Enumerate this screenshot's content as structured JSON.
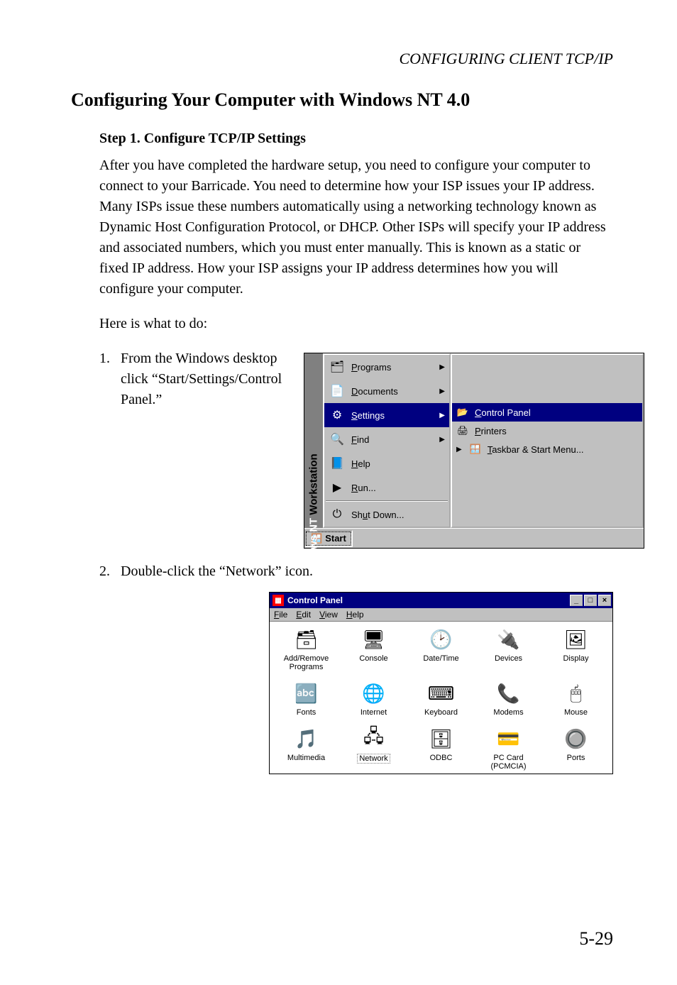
{
  "running_head": "CONFIGURING CLIENT TCP/IP",
  "section_title": "Configuring Your Computer with Windows NT 4.0",
  "step_title": "Step 1. Configure TCP/IP Settings",
  "intro_para": "After you have completed the hardware setup, you need to configure your computer to connect to your Barricade. You need to determine how your ISP issues your IP address. Many ISPs issue these numbers automatically using a networking technology known as Dynamic Host Configuration Protocol, or DHCP. Other ISPs will specify your IP address and associated numbers, which you must enter manually. This is known as a static or fixed IP address. How your ISP assigns your IP address determines how you will configure your computer.",
  "lead_in": "Here is what to do:",
  "list": {
    "item1": {
      "num": "1.",
      "text": "From the Windows desktop click “Start/Settings/Control Panel.”"
    },
    "item2": {
      "num": "2.",
      "text": "Double-click the “Network” icon."
    }
  },
  "start_menu": {
    "banner_bold": "Windows NT",
    "banner_rest": " Workstation",
    "items": [
      {
        "label": "Programs",
        "ak": "P",
        "arrow": true,
        "icon": "programs-icon",
        "glyph": "🗂"
      },
      {
        "label": "Documents",
        "ak": "D",
        "arrow": true,
        "icon": "documents-icon",
        "glyph": "📄"
      },
      {
        "label": "Settings",
        "ak": "S",
        "arrow": true,
        "icon": "settings-icon",
        "glyph": "⚙",
        "selected": true
      },
      {
        "label": "Find",
        "ak": "F",
        "arrow": true,
        "icon": "find-icon",
        "glyph": "🔍"
      },
      {
        "label": "Help",
        "ak": "H",
        "arrow": false,
        "icon": "help-icon",
        "glyph": "📘"
      },
      {
        "label": "Run...",
        "ak": "R",
        "arrow": false,
        "icon": "run-icon",
        "glyph": "▶"
      },
      {
        "sep": true
      },
      {
        "label": "Shut Down...",
        "ak": "u",
        "arrow": false,
        "icon": "shutdown-icon",
        "glyph": "⏻"
      }
    ],
    "submenu": [
      {
        "label": "Control Panel",
        "ak": "C",
        "icon": "control-panel-icon",
        "glyph": "📂",
        "selected": true
      },
      {
        "label": "Printers",
        "ak": "P",
        "icon": "printers-icon",
        "glyph": "🖨"
      },
      {
        "label": "Taskbar & Start Menu...",
        "ak": "T",
        "icon": "taskbar-icon",
        "glyph": "🪟",
        "arrow_left": true
      }
    ],
    "start_button": "Start"
  },
  "control_panel": {
    "title": "Control Panel",
    "menus": [
      {
        "label": "File",
        "ak": "F"
      },
      {
        "label": "Edit",
        "ak": "E"
      },
      {
        "label": "View",
        "ak": "V"
      },
      {
        "label": "Help",
        "ak": "H"
      }
    ],
    "window_controls": {
      "min": "_",
      "max": "□",
      "close": "×"
    },
    "items": [
      {
        "label": "Add/Remove Programs",
        "icon": "add-remove-programs-icon",
        "glyph": "🗃"
      },
      {
        "label": "Console",
        "icon": "console-icon",
        "glyph": "🖥"
      },
      {
        "label": "Date/Time",
        "icon": "date-time-icon",
        "glyph": "🕑"
      },
      {
        "label": "Devices",
        "icon": "devices-icon",
        "glyph": "🔌"
      },
      {
        "label": "Display",
        "icon": "display-icon",
        "glyph": "🖼"
      },
      {
        "label": "Fonts",
        "icon": "fonts-icon",
        "glyph": "🔤"
      },
      {
        "label": "Internet",
        "icon": "internet-icon",
        "glyph": "🌐"
      },
      {
        "label": "Keyboard",
        "icon": "keyboard-icon",
        "glyph": "⌨"
      },
      {
        "label": "Modems",
        "icon": "modems-icon",
        "glyph": "📞"
      },
      {
        "label": "Mouse",
        "icon": "mouse-icon",
        "glyph": "🖱"
      },
      {
        "label": "Multimedia",
        "icon": "multimedia-icon",
        "glyph": "🎵"
      },
      {
        "label": "Network",
        "icon": "network-icon",
        "glyph": "🖧",
        "selected": true
      },
      {
        "label": "ODBC",
        "icon": "odbc-icon",
        "glyph": "🗄"
      },
      {
        "label": "PC Card (PCMCIA)",
        "icon": "pcmcia-icon",
        "glyph": "💳"
      },
      {
        "label": "Ports",
        "icon": "ports-icon",
        "glyph": "🔘"
      }
    ]
  },
  "page_number": "5-29",
  "colors": {
    "win_titlebar": "#000080",
    "win_face": "#c0c0c0",
    "win_banner": "#808080",
    "selection_bg": "#000080",
    "selection_fg": "#ffffff"
  }
}
